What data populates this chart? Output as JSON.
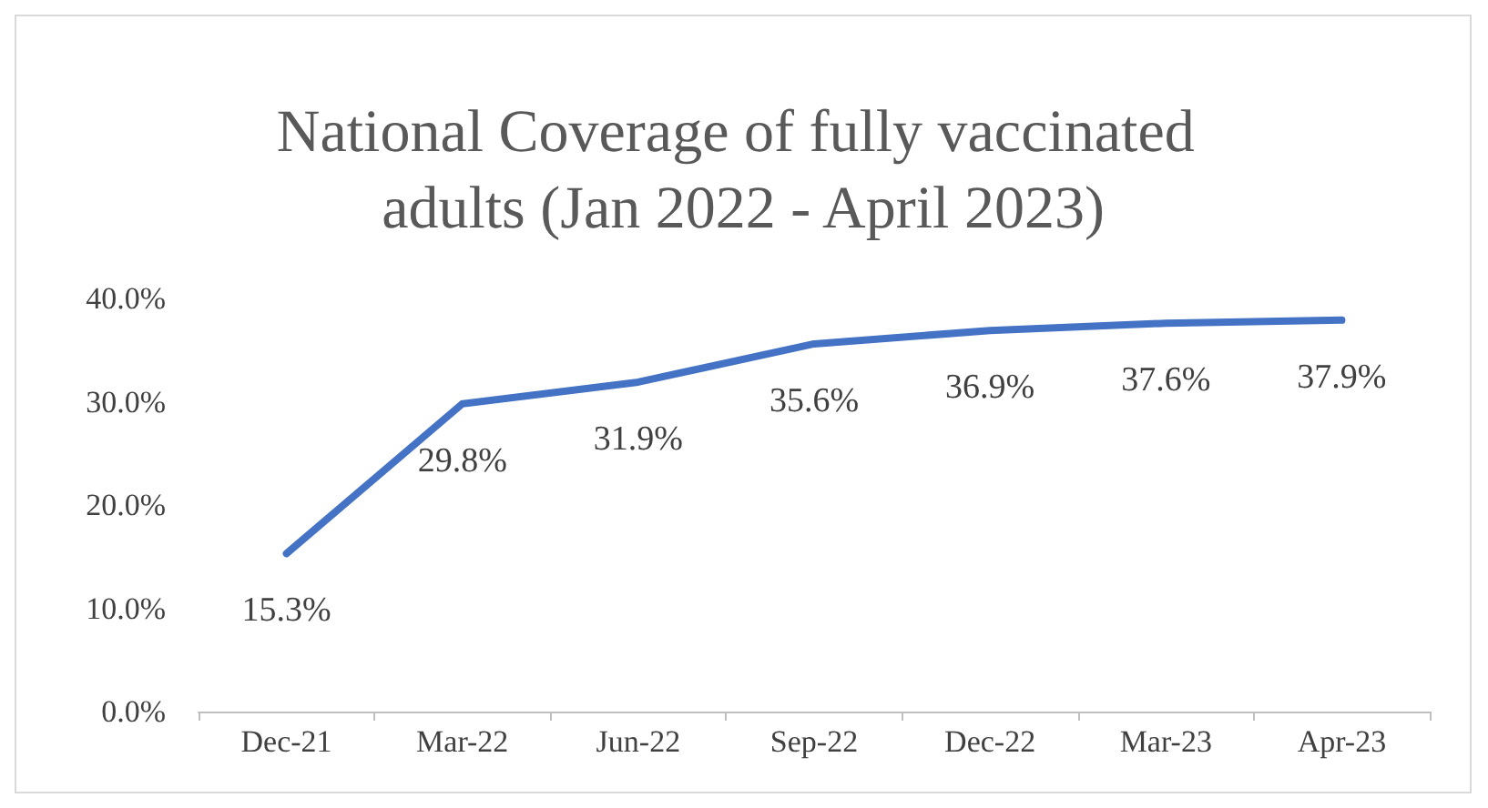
{
  "chart_data": {
    "type": "line",
    "title": "National Coverage of fully vaccinated adults (Jan 2022 - April 2023)",
    "categories": [
      "Dec-21",
      "Mar-22",
      "Jun-22",
      "Sep-22",
      "Dec-22",
      "Mar-23",
      "Apr-23"
    ],
    "series": [
      {
        "color": "#4472c4",
        "values": [
          15.3,
          29.8,
          31.9,
          35.6,
          36.9,
          37.6,
          37.9
        ],
        "value_labels": [
          "15.3%",
          "29.8%",
          "31.9%",
          "35.6%",
          "36.9%",
          "37.6%",
          "37.9%"
        ]
      }
    ],
    "ylim": [
      0,
      40
    ],
    "yticks": [
      {
        "value": 0,
        "label": "0.0%"
      },
      {
        "value": 10,
        "label": "10.0%"
      },
      {
        "value": 20,
        "label": "20.0%"
      },
      {
        "value": 30,
        "label": "30.0%"
      },
      {
        "value": 40,
        "label": "40.0%"
      }
    ],
    "grid": false,
    "marker": "none",
    "line_style": "solid"
  }
}
